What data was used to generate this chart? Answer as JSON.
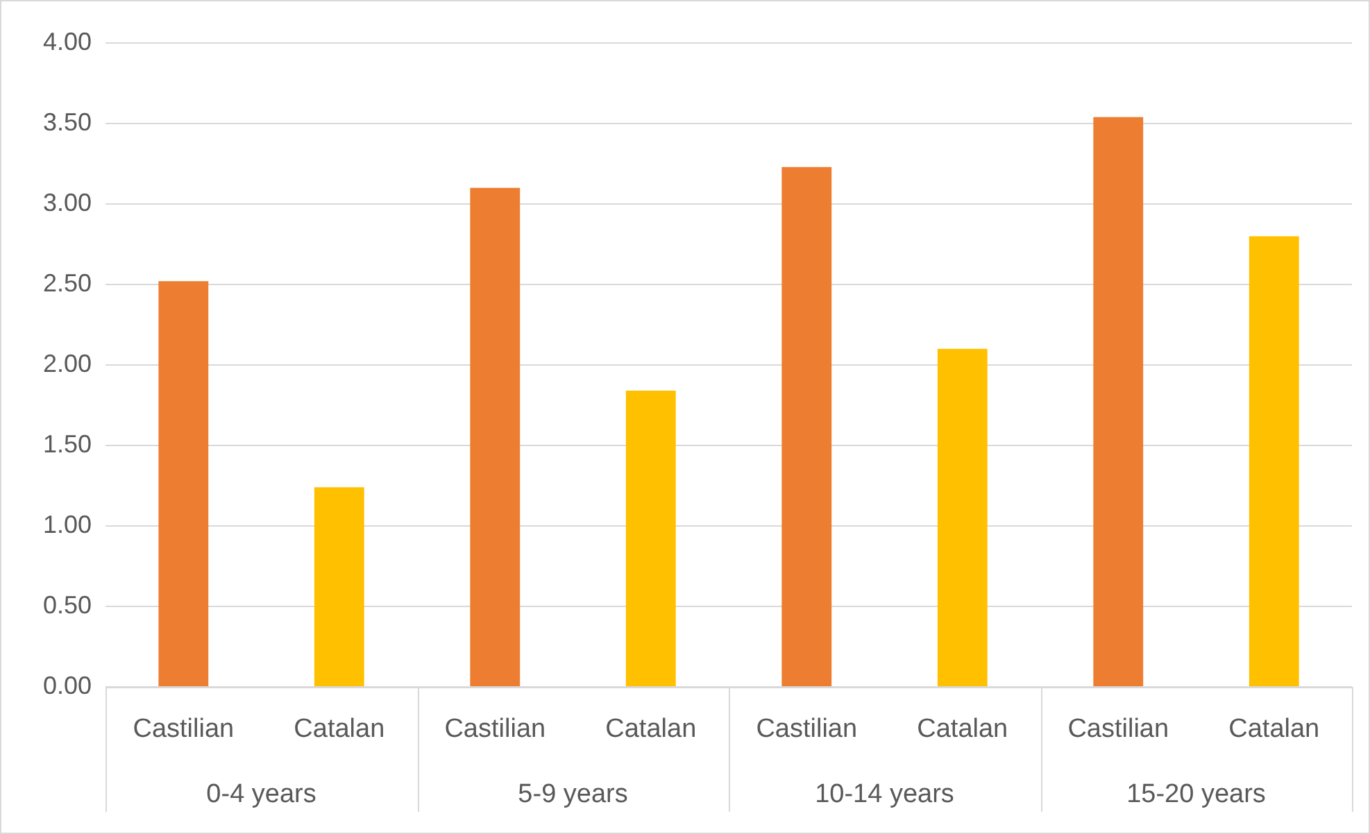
{
  "chart_data": {
    "type": "bar",
    "categories": [
      "0-4 years",
      "5-9 years",
      "10-14 years",
      "15-20 years"
    ],
    "series": [
      {
        "name": "Castilian",
        "color": "#ed7d31",
        "values": [
          2.52,
          3.1,
          3.23,
          3.54
        ]
      },
      {
        "name": "Catalan",
        "color": "#ffc000",
        "values": [
          1.24,
          1.84,
          2.1,
          2.8
        ]
      }
    ],
    "ylim": [
      0,
      4
    ],
    "yticks": [
      {
        "value": 0,
        "label": "0.00"
      },
      {
        "value": 0.5,
        "label": "0.50"
      },
      {
        "value": 1,
        "label": "1.00"
      },
      {
        "value": 1.5,
        "label": "1.50"
      },
      {
        "value": 2,
        "label": "2.00"
      },
      {
        "value": 2.5,
        "label": "2.50"
      },
      {
        "value": 3,
        "label": "3.00"
      },
      {
        "value": 3.5,
        "label": "3.50"
      },
      {
        "value": 4,
        "label": "4.00"
      }
    ],
    "grid": "y",
    "legend": false
  }
}
